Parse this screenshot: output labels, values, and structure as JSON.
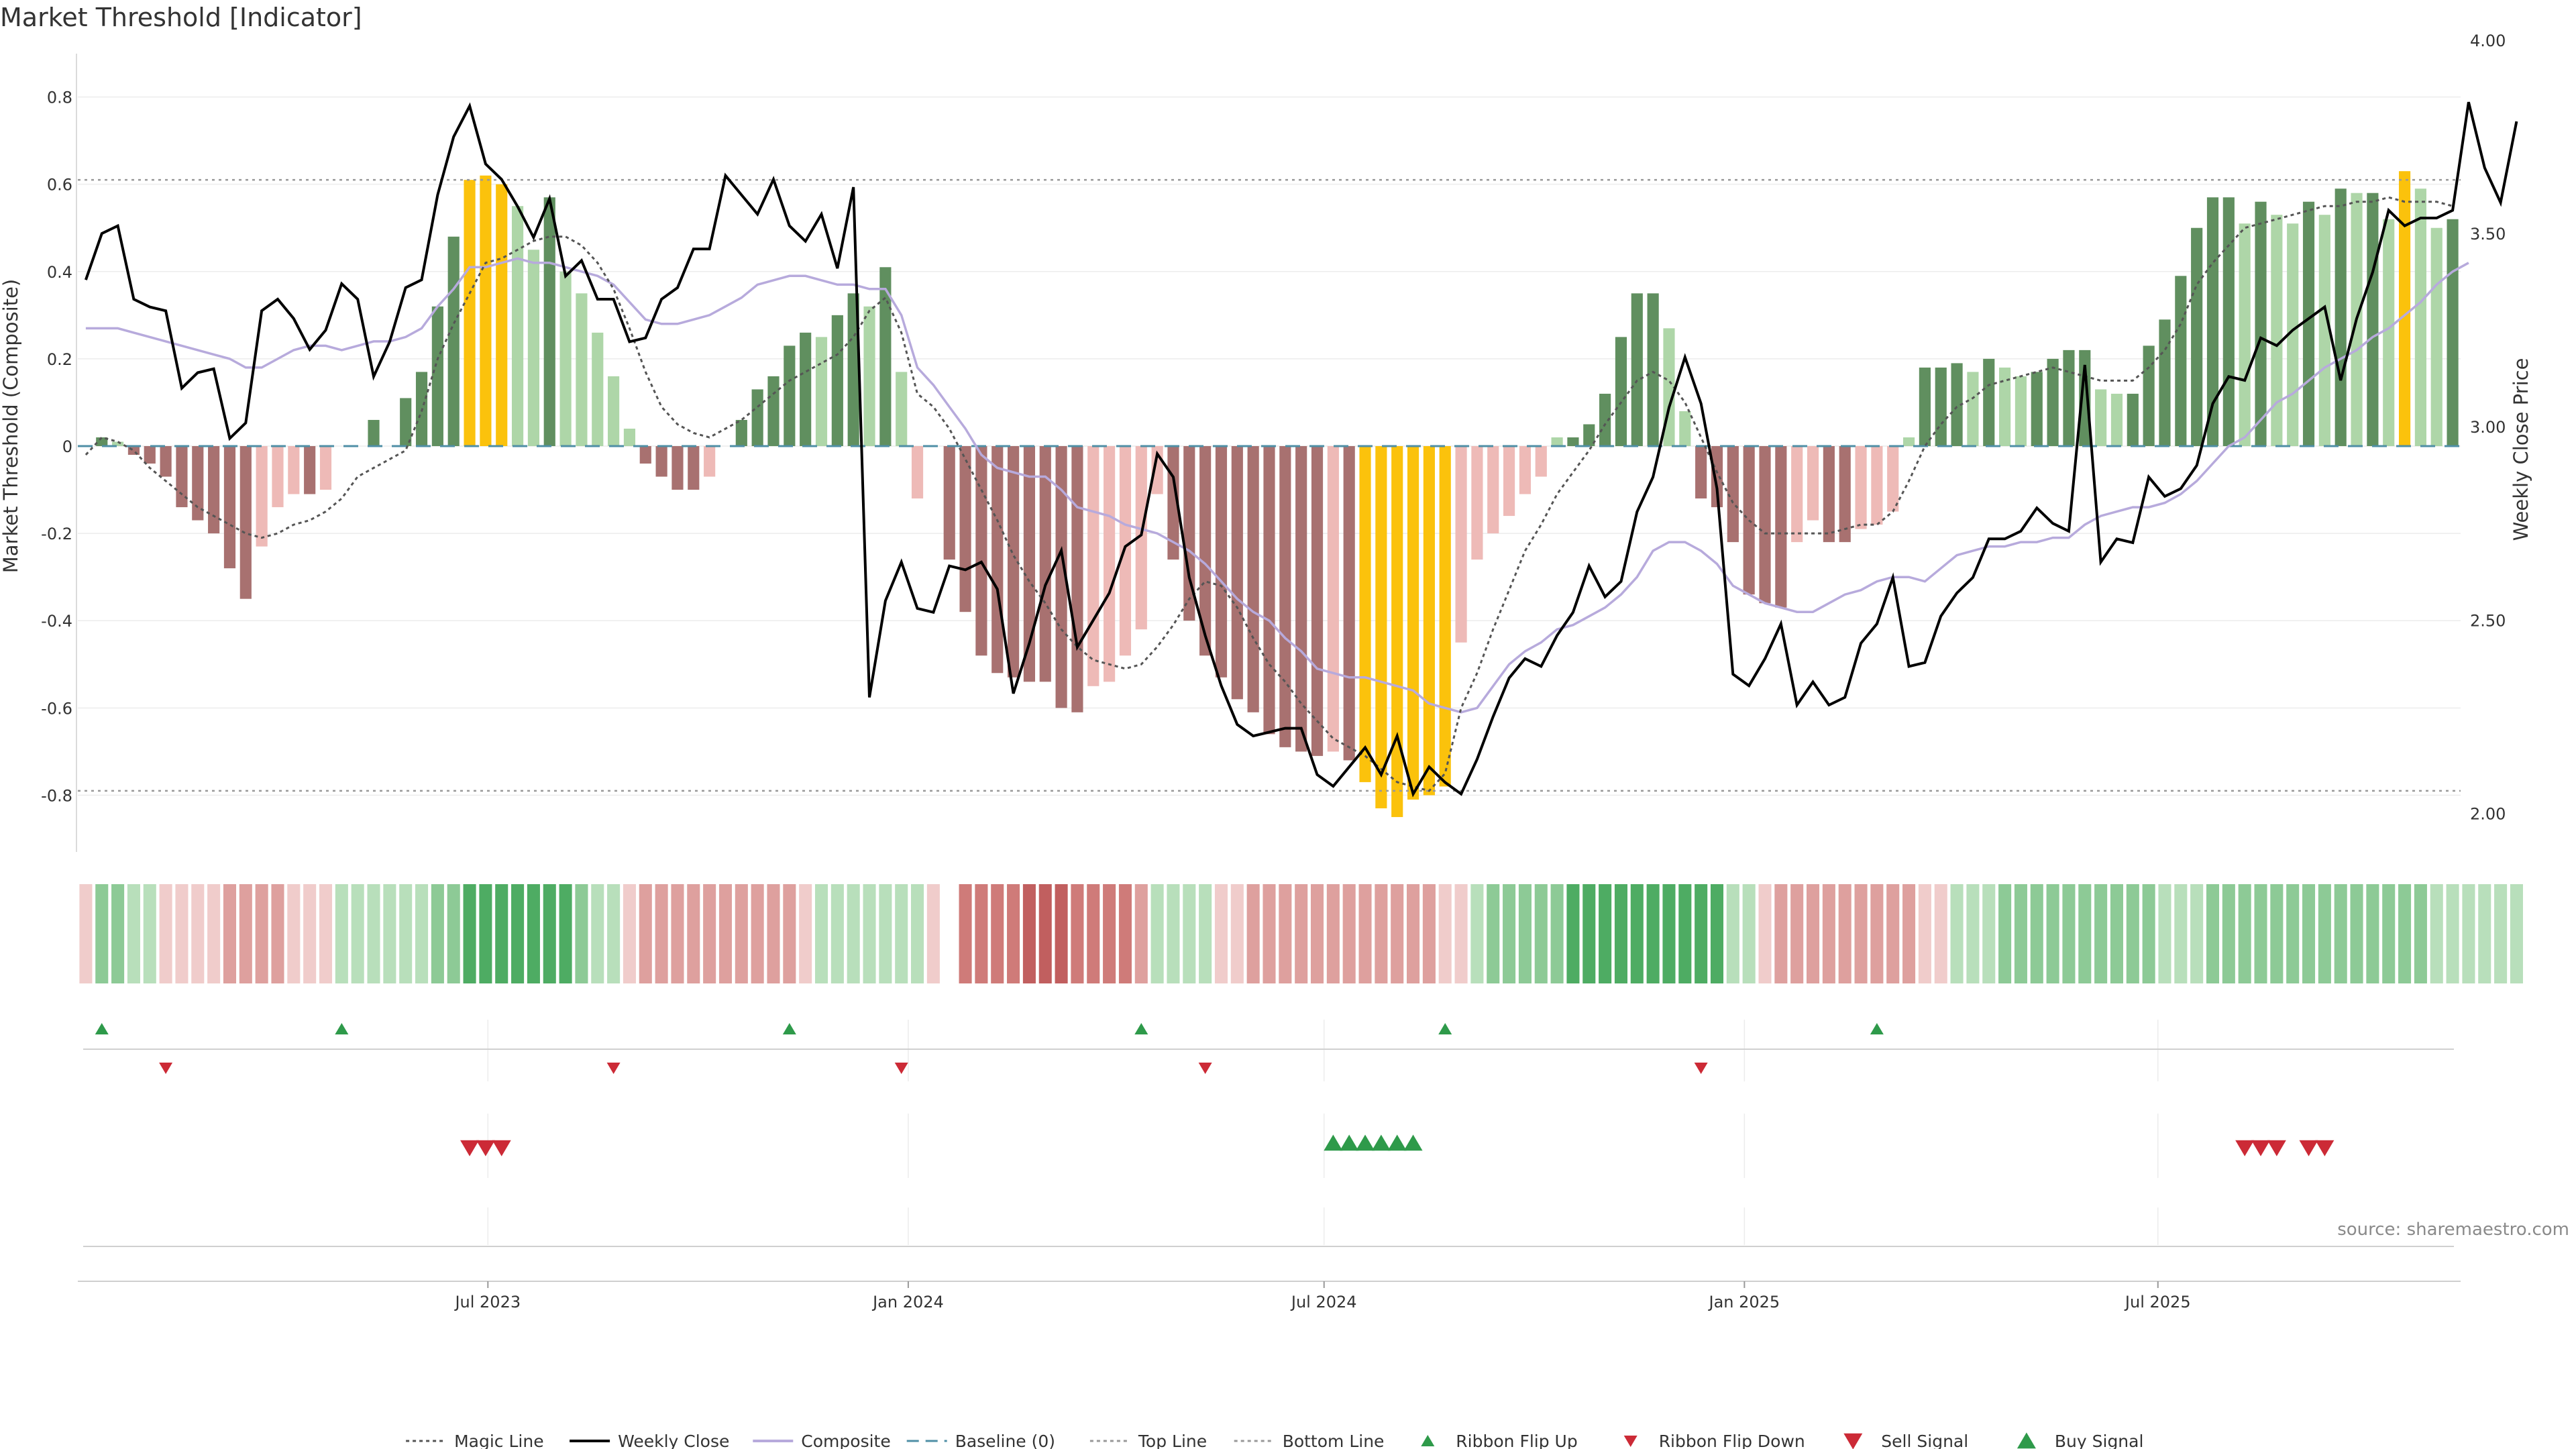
{
  "title": "Market Threshold [Indicator]",
  "source": "source: sharemaestro.com",
  "colors": {
    "bear_dark": "#a87170",
    "bear_light": "#eebab7",
    "bull_dark": "#608f5f",
    "bull_light": "#aed6a8",
    "extreme": "#fbc20c",
    "magic": "#555555",
    "close": "#000000",
    "composite": "#b7aadc",
    "baseline": "#4f8fa6",
    "threshold": "#999999",
    "flip_up": "#2e9a4a",
    "flip_down": "#cc2a36"
  },
  "chart_data": {
    "type": "bar",
    "x_start": "2023-01-06",
    "x_step_days": 7,
    "ylabel": "Market Threshold (Composite)",
    "ylim": [
      -0.93,
      0.93
    ],
    "y_ticks": [
      "0.8",
      "0.6",
      "0.4",
      "0.2",
      "0",
      "-0.2",
      "-0.4",
      "-0.6",
      "-0.8"
    ],
    "y2label": "Weekly Close Price",
    "y2lim": [
      1.9,
      4.0
    ],
    "y2_ticks": [
      "4.00",
      "3.50",
      "3.00",
      "2.50",
      "2.00"
    ],
    "x_ticks": [
      {
        "label": "Jul 2023",
        "date": "2023-07-01"
      },
      {
        "label": "Jan 2024",
        "date": "2024-01-01"
      },
      {
        "label": "Jul 2024",
        "date": "2024-07-01"
      },
      {
        "label": "Jan 2025",
        "date": "2025-01-01"
      },
      {
        "label": "Jul 2025",
        "date": "2025-07-01"
      }
    ],
    "top_line": 0.61,
    "bottom_line": -0.79,
    "baseline": 0,
    "composite_bars": [
      0,
      0.02,
      0.01,
      -0.02,
      -0.04,
      -0.07,
      -0.14,
      -0.17,
      -0.2,
      -0.28,
      -0.35,
      -0.23,
      -0.14,
      -0.11,
      -0.11,
      -0.1,
      0,
      0,
      0.06,
      0,
      0.11,
      0.17,
      0.32,
      0.48,
      0.61,
      0.62,
      0.6,
      0.55,
      0.45,
      0.57,
      0.4,
      0.35,
      0.26,
      0.16,
      0.04,
      -0.04,
      -0.07,
      -0.1,
      -0.1,
      -0.07,
      0,
      0.06,
      0.13,
      0.16,
      0.23,
      0.26,
      0.25,
      0.3,
      0.35,
      0.32,
      0.41,
      0.17,
      -0.12,
      0,
      -0.26,
      -0.38,
      -0.48,
      -0.52,
      -0.53,
      -0.54,
      -0.54,
      -0.6,
      -0.61,
      -0.55,
      -0.54,
      -0.48,
      -0.42,
      -0.11,
      -0.26,
      -0.4,
      -0.48,
      -0.53,
      -0.58,
      -0.61,
      -0.66,
      -0.69,
      -0.7,
      -0.71,
      -0.7,
      -0.72,
      -0.77,
      -0.83,
      -0.85,
      -0.81,
      -0.8,
      -0.78,
      -0.45,
      -0.26,
      -0.2,
      -0.16,
      -0.11,
      -0.07,
      0.02,
      0.02,
      0.05,
      0.12,
      0.25,
      0.35,
      0.35,
      0.27,
      0.08,
      -0.12,
      -0.14,
      -0.22,
      -0.34,
      -0.36,
      -0.37,
      -0.22,
      -0.17,
      -0.22,
      -0.22,
      -0.19,
      -0.18,
      -0.15,
      0.02,
      0.18,
      0.18,
      0.19,
      0.17,
      0.2,
      0.18,
      0.16,
      0.17,
      0.2,
      0.22,
      0.22,
      0.13,
      0.12,
      0.12,
      0.23,
      0.29,
      0.39,
      0.5,
      0.57,
      0.57,
      0.51,
      0.56,
      0.53,
      0.51,
      0.56,
      0.53,
      0.59,
      0.58,
      0.58,
      0.52,
      0.63,
      0.59,
      0.5,
      0.52
    ],
    "weekly_close": [
      3.38,
      3.5,
      3.52,
      3.33,
      3.31,
      3.3,
      3.1,
      3.14,
      3.15,
      2.97,
      3.01,
      3.3,
      3.33,
      3.28,
      3.2,
      3.25,
      3.37,
      3.33,
      3.13,
      3.22,
      3.36,
      3.38,
      3.6,
      3.75,
      3.83,
      3.68,
      3.64,
      3.57,
      3.49,
      3.59,
      3.39,
      3.43,
      3.33,
      3.33,
      3.22,
      3.23,
      3.33,
      3.36,
      3.46,
      3.46,
      3.65,
      3.6,
      3.55,
      3.64,
      3.52,
      3.48,
      3.55,
      3.41,
      3.62,
      2.3,
      2.55,
      2.65,
      2.53,
      2.52,
      2.64,
      2.63,
      2.65,
      2.58,
      2.31,
      2.44,
      2.59,
      2.68,
      2.43,
      2.5,
      2.57,
      2.69,
      2.72,
      2.93,
      2.87,
      2.61,
      2.46,
      2.33,
      2.23,
      2.2,
      2.21,
      2.22,
      2.22,
      2.1,
      2.07,
      2.12,
      2.17,
      2.1,
      2.2,
      2.05,
      2.12,
      2.08,
      2.05,
      2.14,
      2.25,
      2.35,
      2.4,
      2.38,
      2.46,
      2.52,
      2.64,
      2.56,
      2.6,
      2.78,
      2.87,
      3.05,
      3.18,
      3.06,
      2.84,
      2.36,
      2.33,
      2.4,
      2.49,
      2.28,
      2.34,
      2.28,
      2.3,
      2.44,
      2.49,
      2.61,
      2.38,
      2.39,
      2.51,
      2.57,
      2.61,
      2.71,
      2.71,
      2.73,
      2.79,
      2.75,
      2.73,
      3.16,
      2.65,
      2.71,
      2.7,
      2.87,
      2.82,
      2.84,
      2.9,
      3.06,
      3.13,
      3.12,
      3.23,
      3.21,
      3.25,
      3.28,
      3.31,
      3.12,
      3.28,
      3.4,
      3.56,
      3.52,
      3.54,
      3.54,
      3.56,
      3.84,
      3.67,
      3.58,
      3.79
    ],
    "composite_line": [
      0.27,
      0.27,
      0.27,
      0.26,
      0.25,
      0.24,
      0.23,
      0.22,
      0.21,
      0.2,
      0.18,
      0.18,
      0.2,
      0.22,
      0.23,
      0.23,
      0.22,
      0.23,
      0.24,
      0.24,
      0.25,
      0.27,
      0.32,
      0.36,
      0.41,
      0.41,
      0.42,
      0.43,
      0.42,
      0.42,
      0.41,
      0.4,
      0.39,
      0.37,
      0.33,
      0.29,
      0.28,
      0.28,
      0.29,
      0.3,
      0.32,
      0.34,
      0.37,
      0.38,
      0.39,
      0.39,
      0.38,
      0.37,
      0.37,
      0.36,
      0.36,
      0.3,
      0.18,
      0.14,
      0.09,
      0.04,
      -0.02,
      -0.05,
      -0.06,
      -0.07,
      -0.07,
      -0.1,
      -0.14,
      -0.15,
      -0.16,
      -0.18,
      -0.19,
      -0.2,
      -0.22,
      -0.24,
      -0.27,
      -0.31,
      -0.35,
      -0.38,
      -0.4,
      -0.44,
      -0.47,
      -0.51,
      -0.52,
      -0.53,
      -0.53,
      -0.54,
      -0.55,
      -0.56,
      -0.59,
      -0.6,
      -0.61,
      -0.6,
      -0.55,
      -0.5,
      -0.47,
      -0.45,
      -0.42,
      -0.41,
      -0.39,
      -0.37,
      -0.34,
      -0.3,
      -0.24,
      -0.22,
      -0.22,
      -0.24,
      -0.27,
      -0.32,
      -0.34,
      -0.36,
      -0.37,
      -0.38,
      -0.38,
      -0.36,
      -0.34,
      -0.33,
      -0.31,
      -0.3,
      -0.3,
      -0.31,
      -0.28,
      -0.25,
      -0.24,
      -0.23,
      -0.23,
      -0.22,
      -0.22,
      -0.21,
      -0.21,
      -0.18,
      -0.16,
      -0.15,
      -0.14,
      -0.14,
      -0.13,
      -0.11,
      -0.08,
      -0.04,
      0,
      0.02,
      0.06,
      0.1,
      0.12,
      0.15,
      0.18,
      0.2,
      0.22,
      0.25,
      0.27,
      0.3,
      0.33,
      0.37,
      0.4,
      0.42
    ],
    "magic_line": [
      -0.02,
      0.02,
      0.01,
      -0.01,
      -0.05,
      -0.08,
      -0.11,
      -0.14,
      -0.16,
      -0.18,
      -0.2,
      -0.21,
      -0.2,
      -0.18,
      -0.17,
      -0.15,
      -0.12,
      -0.07,
      -0.05,
      -0.03,
      -0.01,
      0.08,
      0.2,
      0.28,
      0.35,
      0.42,
      0.43,
      0.45,
      0.47,
      0.48,
      0.48,
      0.46,
      0.42,
      0.36,
      0.27,
      0.17,
      0.09,
      0.05,
      0.03,
      0.02,
      0.04,
      0.06,
      0.09,
      0.12,
      0.15,
      0.17,
      0.19,
      0.21,
      0.25,
      0.31,
      0.34,
      0.26,
      0.12,
      0.09,
      0.04,
      -0.03,
      -0.1,
      -0.17,
      -0.25,
      -0.31,
      -0.36,
      -0.42,
      -0.46,
      -0.49,
      -0.5,
      -0.51,
      -0.5,
      -0.46,
      -0.41,
      -0.35,
      -0.31,
      -0.32,
      -0.37,
      -0.44,
      -0.5,
      -0.54,
      -0.59,
      -0.63,
      -0.67,
      -0.69,
      -0.71,
      -0.74,
      -0.77,
      -0.78,
      -0.79,
      -0.75,
      -0.6,
      -0.52,
      -0.42,
      -0.33,
      -0.24,
      -0.18,
      -0.11,
      -0.06,
      -0.01,
      0.05,
      0.1,
      0.15,
      0.17,
      0.15,
      0.1,
      0.02,
      -0.06,
      -0.13,
      -0.17,
      -0.2,
      -0.2,
      -0.2,
      -0.2,
      -0.2,
      -0.19,
      -0.18,
      -0.18,
      -0.15,
      -0.08,
      0,
      0.05,
      0.09,
      0.11,
      0.14,
      0.15,
      0.16,
      0.17,
      0.18,
      0.17,
      0.16,
      0.15,
      0.15,
      0.15,
      0.18,
      0.22,
      0.28,
      0.37,
      0.42,
      0.46,
      0.5,
      0.51,
      0.52,
      0.53,
      0.54,
      0.55,
      0.55,
      0.56,
      0.56,
      0.57,
      0.56,
      0.56,
      0.56,
      0.55
    ],
    "ribbon": [
      -1,
      2,
      2,
      1,
      1,
      -1,
      -1,
      -1,
      -1,
      -2,
      -2,
      -2,
      -2,
      -1,
      -1,
      -1,
      1,
      1,
      1,
      1,
      1,
      1,
      2,
      2,
      3,
      3,
      3,
      3,
      3,
      3,
      3,
      2,
      1,
      1,
      -1,
      -2,
      -2,
      -2,
      -2,
      -2,
      -2,
      -2,
      -2,
      -2,
      -2,
      -1,
      1,
      1,
      1,
      1,
      1,
      1,
      1,
      -1,
      0,
      -3,
      -3,
      -3,
      -3,
      -4,
      -4,
      -4,
      -3,
      -3,
      -3,
      -3,
      -2,
      1,
      1,
      1,
      1,
      -1,
      -1,
      -2,
      -2,
      -2,
      -2,
      -2,
      -2,
      -2,
      -2,
      -2,
      -2,
      -2,
      -2,
      -1,
      -1,
      1,
      2,
      2,
      2,
      2,
      2,
      3,
      3,
      3,
      3,
      3,
      3,
      3,
      3,
      3,
      3,
      1,
      1,
      -1,
      -2,
      -2,
      -2,
      -2,
      -2,
      -2,
      -2,
      -2,
      -2,
      -1,
      -1,
      1,
      1,
      1,
      2,
      2,
      2,
      2,
      2,
      2,
      2,
      2,
      2,
      2,
      1,
      1,
      1,
      2,
      2,
      2,
      2,
      2,
      2,
      2,
      2,
      2,
      2,
      2,
      2,
      2,
      2,
      1,
      1,
      1,
      1,
      1,
      1
    ],
    "flip_up_idx": [
      1,
      16,
      44,
      66,
      85,
      112
    ],
    "flip_down_idx": [
      5,
      33,
      51,
      70,
      101
    ],
    "sell_idx": [
      24,
      25,
      26,
      135,
      136,
      137,
      139,
      140
    ],
    "buy_idx": [
      78,
      79,
      80,
      81,
      82,
      83
    ],
    "legend": [
      {
        "label": "Magic Line",
        "kind": "dotted",
        "color": "#555555"
      },
      {
        "label": "Weekly Close",
        "kind": "solid",
        "color": "#000000"
      },
      {
        "label": "Composite",
        "kind": "solid",
        "color": "#b7aadc"
      },
      {
        "label": "Baseline (0)",
        "kind": "dashed",
        "color": "#4f8fa6"
      },
      {
        "label": "Top Line",
        "kind": "dotted",
        "color": "#999999"
      },
      {
        "label": "Bottom Line",
        "kind": "dotted",
        "color": "#999999"
      },
      {
        "label": "Ribbon Flip Up",
        "kind": "tri-up-small",
        "color": "#2e9a4a"
      },
      {
        "label": "Ribbon Flip Down",
        "kind": "tri-down-small",
        "color": "#cc2a36"
      },
      {
        "label": "Sell Signal",
        "kind": "tri-down",
        "color": "#cc2a36"
      },
      {
        "label": "Buy Signal",
        "kind": "tri-up",
        "color": "#2e9a4a"
      }
    ]
  }
}
